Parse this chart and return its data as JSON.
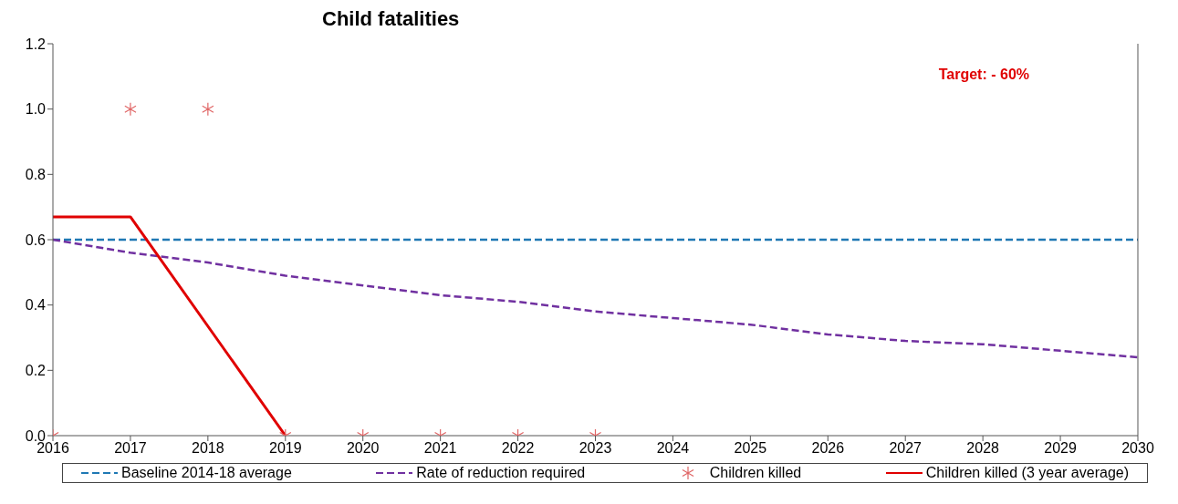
{
  "chart_data": {
    "type": "line",
    "title": "Child fatalities",
    "annotations": [
      "Target: - 60%"
    ],
    "xlim": [
      2016,
      2030
    ],
    "xticks": [
      2016,
      2017,
      2018,
      2019,
      2020,
      2021,
      2022,
      2023,
      2024,
      2025,
      2026,
      2027,
      2028,
      2029,
      2030
    ],
    "ylim": [
      0,
      1.2
    ],
    "yticks": [
      {
        "value": 0,
        "label": "0.0"
      },
      0.2,
      0.4,
      0.6,
      0.8,
      {
        "value": 1,
        "label": "1.0"
      },
      {
        "value": 1.2,
        "label": "1.2"
      }
    ],
    "grid": false,
    "legend": "bottom",
    "series": [
      {
        "name": "Baseline 2014-18 average",
        "color": "#1f78b4",
        "line_style": "dashed",
        "marker": "none",
        "x": [
          2016,
          2030
        ],
        "values": [
          0.6,
          0.6
        ]
      },
      {
        "name": "Rate of reduction required",
        "color": "#7030a0",
        "line_style": "dashed",
        "marker": "none",
        "x": [
          2016,
          2017,
          2018,
          2019,
          2020,
          2021,
          2022,
          2023,
          2024,
          2025,
          2026,
          2027,
          2028,
          2029,
          2030
        ],
        "values": [
          0.6,
          0.56,
          0.53,
          0.49,
          0.46,
          0.43,
          0.41,
          0.38,
          0.36,
          0.34,
          0.31,
          0.29,
          0.28,
          0.26,
          0.24
        ]
      },
      {
        "name": "Children killed",
        "type": "scatter",
        "color": "#e06666",
        "marker": "cross",
        "x": [
          2016,
          2017,
          2018,
          2019,
          2020,
          2021,
          2022,
          2023
        ],
        "values": [
          0,
          1,
          1,
          0,
          0,
          0,
          0,
          0
        ]
      },
      {
        "name": "Children killed (3 year average)",
        "color": "#e00000",
        "line_style": "solid",
        "marker": "none",
        "x": [
          2016,
          2017,
          2019
        ],
        "values": [
          0.67,
          0.67,
          0
        ]
      }
    ]
  }
}
